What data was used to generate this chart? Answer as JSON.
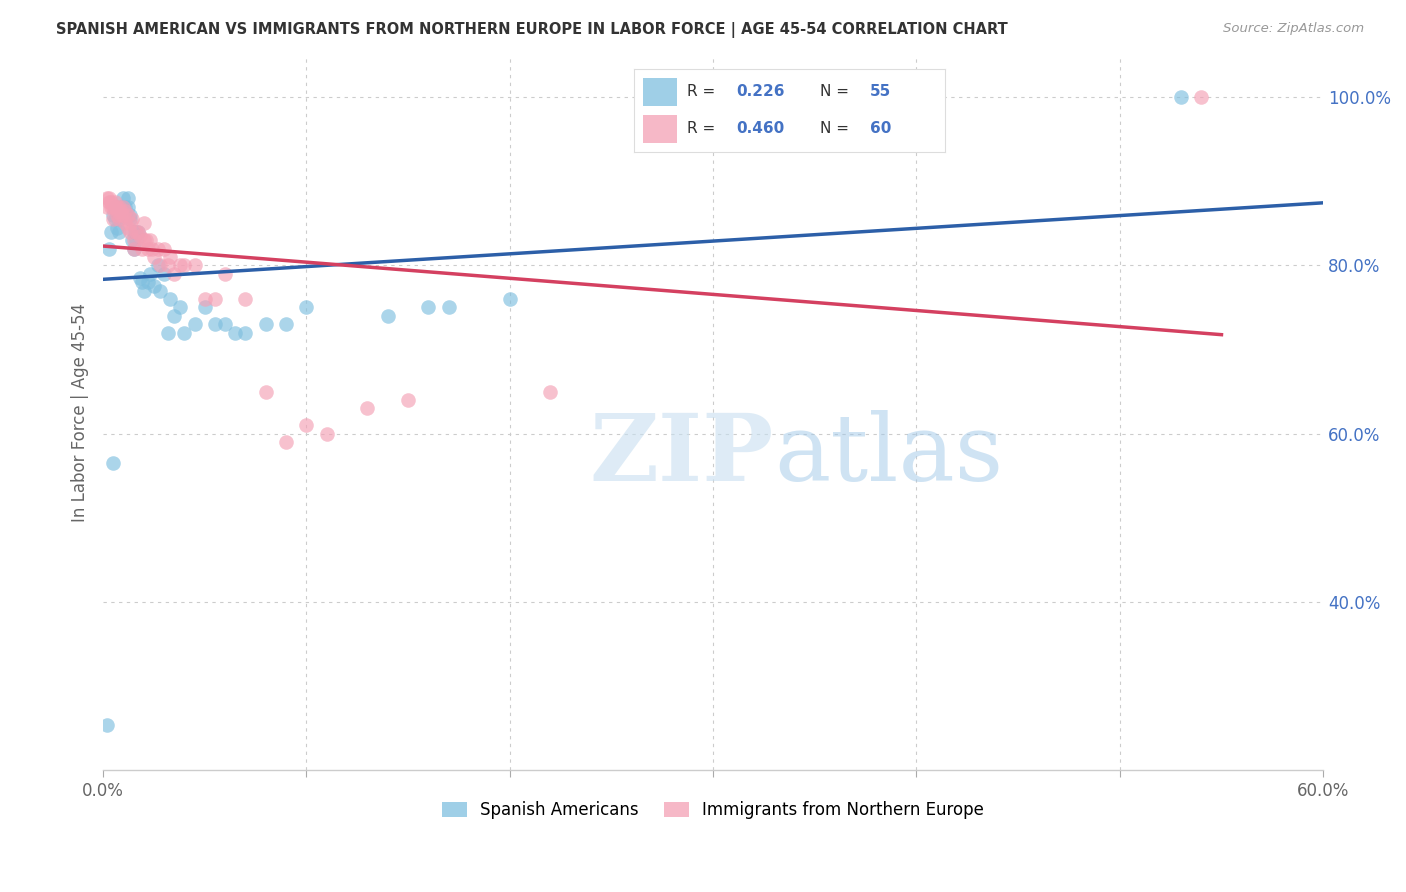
{
  "title": "SPANISH AMERICAN VS IMMIGRANTS FROM NORTHERN EUROPE IN LABOR FORCE | AGE 45-54 CORRELATION CHART",
  "source": "Source: ZipAtlas.com",
  "ylabel": "In Labor Force | Age 45-54",
  "xlim": [
    0.0,
    0.6
  ],
  "ylim": [
    0.2,
    1.05
  ],
  "xtick_vals": [
    0.0,
    0.1,
    0.2,
    0.3,
    0.4,
    0.5,
    0.6
  ],
  "xticklabels": [
    "0.0%",
    "",
    "",
    "",
    "",
    "",
    "60.0%"
  ],
  "ytick_vals": [
    0.4,
    0.6,
    0.8,
    1.0
  ],
  "yticklabels": [
    "40.0%",
    "60.0%",
    "80.0%",
    "100.0%"
  ],
  "blue_color": "#7fbfdf",
  "pink_color": "#f4a0b5",
  "blue_line_color": "#2c5fa8",
  "pink_line_color": "#d44060",
  "blue_R": 0.226,
  "blue_N": 55,
  "pink_R": 0.46,
  "pink_N": 60,
  "blue_label": "Spanish Americans",
  "pink_label": "Immigrants from Northern Europe",
  "watermark_zip": "ZIP",
  "watermark_atlas": "atlas",
  "background_color": "#ffffff",
  "spanish_x": [
    0.002,
    0.003,
    0.004,
    0.005,
    0.005,
    0.006,
    0.006,
    0.007,
    0.007,
    0.008,
    0.008,
    0.009,
    0.009,
    0.01,
    0.01,
    0.011,
    0.011,
    0.012,
    0.012,
    0.013,
    0.013,
    0.014,
    0.015,
    0.015,
    0.016,
    0.016,
    0.017,
    0.018,
    0.019,
    0.02,
    0.022,
    0.023,
    0.025,
    0.027,
    0.028,
    0.03,
    0.032,
    0.033,
    0.035,
    0.038,
    0.04,
    0.045,
    0.05,
    0.055,
    0.06,
    0.065,
    0.07,
    0.08,
    0.09,
    0.1,
    0.14,
    0.16,
    0.17,
    0.2,
    0.53
  ],
  "spanish_y": [
    0.253,
    0.82,
    0.84,
    0.86,
    0.565,
    0.87,
    0.855,
    0.845,
    0.865,
    0.84,
    0.855,
    0.87,
    0.86,
    0.87,
    0.88,
    0.87,
    0.86,
    0.87,
    0.88,
    0.86,
    0.855,
    0.83,
    0.84,
    0.82,
    0.84,
    0.83,
    0.84,
    0.785,
    0.78,
    0.77,
    0.78,
    0.79,
    0.775,
    0.8,
    0.77,
    0.79,
    0.72,
    0.76,
    0.74,
    0.75,
    0.72,
    0.73,
    0.75,
    0.73,
    0.73,
    0.72,
    0.72,
    0.73,
    0.73,
    0.75,
    0.74,
    0.75,
    0.75,
    0.76,
    1.0
  ],
  "northern_x": [
    0.002,
    0.002,
    0.003,
    0.003,
    0.004,
    0.004,
    0.005,
    0.005,
    0.006,
    0.006,
    0.007,
    0.007,
    0.007,
    0.008,
    0.008,
    0.009,
    0.009,
    0.01,
    0.01,
    0.011,
    0.011,
    0.012,
    0.012,
    0.013,
    0.013,
    0.014,
    0.015,
    0.015,
    0.016,
    0.017,
    0.018,
    0.019,
    0.02,
    0.02,
    0.021,
    0.022,
    0.023,
    0.024,
    0.025,
    0.027,
    0.028,
    0.03,
    0.032,
    0.033,
    0.035,
    0.038,
    0.04,
    0.045,
    0.05,
    0.055,
    0.06,
    0.07,
    0.08,
    0.09,
    0.1,
    0.11,
    0.13,
    0.15,
    0.22,
    0.54
  ],
  "northern_y": [
    0.87,
    0.88,
    0.875,
    0.88,
    0.87,
    0.875,
    0.87,
    0.855,
    0.87,
    0.875,
    0.87,
    0.865,
    0.86,
    0.87,
    0.855,
    0.865,
    0.86,
    0.87,
    0.86,
    0.865,
    0.85,
    0.86,
    0.845,
    0.84,
    0.85,
    0.855,
    0.83,
    0.82,
    0.84,
    0.84,
    0.835,
    0.82,
    0.85,
    0.83,
    0.83,
    0.82,
    0.83,
    0.82,
    0.81,
    0.82,
    0.8,
    0.82,
    0.8,
    0.81,
    0.79,
    0.8,
    0.8,
    0.8,
    0.76,
    0.76,
    0.79,
    0.76,
    0.65,
    0.59,
    0.61,
    0.6,
    0.63,
    0.64,
    0.65,
    1.0
  ]
}
